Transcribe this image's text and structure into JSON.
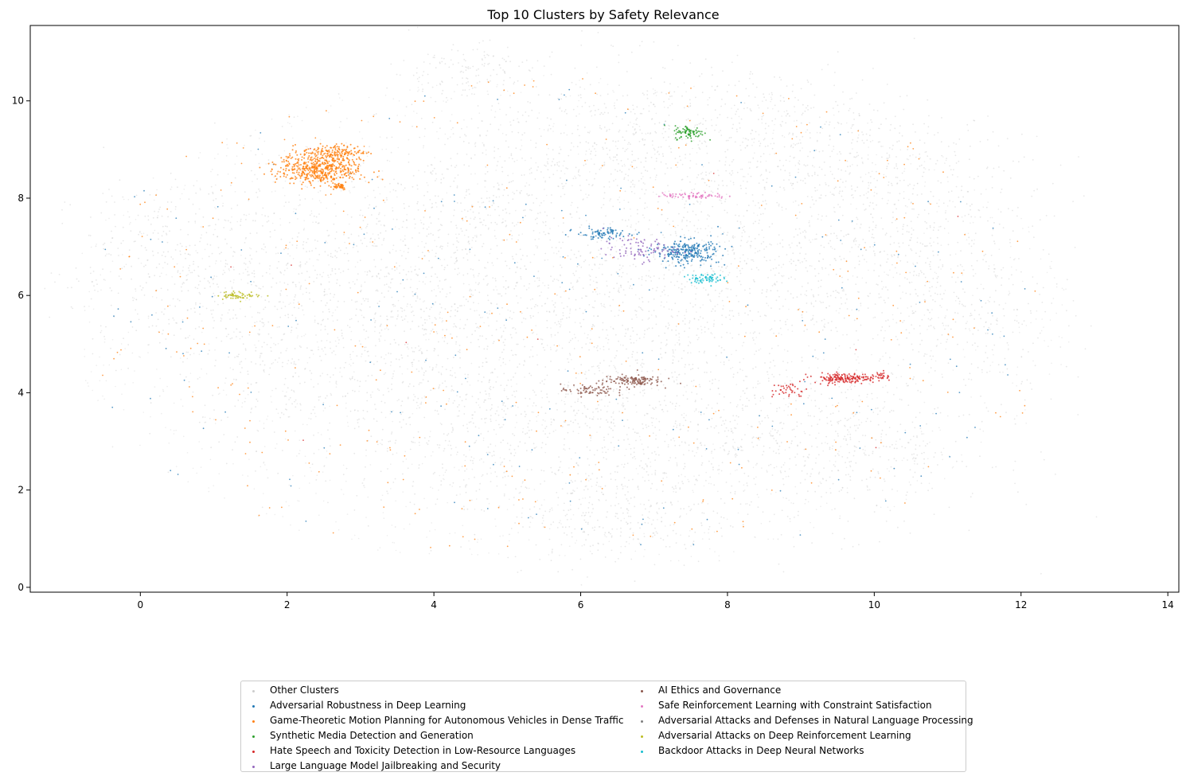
{
  "chart_data": {
    "type": "scatter",
    "title": "Top 10 Clusters by Safety Relevance",
    "xlabel": "",
    "ylabel": "",
    "xlim": [
      -1.5,
      14.15
    ],
    "ylim": [
      -0.1,
      11.55
    ],
    "xticks": [
      0,
      2,
      4,
      6,
      8,
      10,
      12,
      14
    ],
    "yticks": [
      0,
      2,
      4,
      6,
      8,
      10
    ],
    "grid": false,
    "legend_position": "bottom-center",
    "legend_columns": 2,
    "background_series": {
      "name": "Other Clusters",
      "color": "#cccccc",
      "description_regions": [
        {
          "x": 0.6,
          "y": 6.6,
          "sx": 0.9,
          "sy": 0.9,
          "n": 420
        },
        {
          "x": 2.5,
          "y": 6.4,
          "sx": 1.0,
          "sy": 1.1,
          "n": 380
        },
        {
          "x": 4.6,
          "y": 8.0,
          "sx": 0.9,
          "sy": 1.0,
          "n": 380
        },
        {
          "x": 4.2,
          "y": 5.6,
          "sx": 1.0,
          "sy": 0.9,
          "n": 420
        },
        {
          "x": 4.3,
          "y": 3.4,
          "sx": 1.0,
          "sy": 0.9,
          "n": 380
        },
        {
          "x": 6.6,
          "y": 9.1,
          "sx": 0.9,
          "sy": 0.9,
          "n": 420
        },
        {
          "x": 6.8,
          "y": 6.2,
          "sx": 1.0,
          "sy": 1.0,
          "n": 520
        },
        {
          "x": 6.6,
          "y": 3.3,
          "sx": 1.0,
          "sy": 1.0,
          "n": 480
        },
        {
          "x": 6.5,
          "y": 1.4,
          "sx": 0.8,
          "sy": 0.5,
          "n": 240
        },
        {
          "x": 8.8,
          "y": 9.1,
          "sx": 1.1,
          "sy": 0.8,
          "n": 460
        },
        {
          "x": 9.0,
          "y": 6.6,
          "sx": 1.1,
          "sy": 1.0,
          "n": 500
        },
        {
          "x": 9.2,
          "y": 3.0,
          "sx": 1.2,
          "sy": 0.9,
          "n": 620
        },
        {
          "x": 10.8,
          "y": 7.6,
          "sx": 0.8,
          "sy": 0.9,
          "n": 300
        },
        {
          "x": 11.3,
          "y": 5.6,
          "sx": 0.7,
          "sy": 0.8,
          "n": 200
        },
        {
          "x": 4.4,
          "y": 10.6,
          "sx": 0.5,
          "sy": 0.3,
          "n": 140
        },
        {
          "x": 2.0,
          "y": 4.3,
          "sx": 1.0,
          "sy": 0.8,
          "n": 220
        }
      ]
    },
    "series": [
      {
        "name": "Adversarial Robustness in Deep Learning",
        "color": "#1f77b4",
        "clusters": [
          {
            "x": 7.45,
            "y": 6.9,
            "sx": 0.22,
            "sy": 0.12,
            "n": 260
          },
          {
            "x": 6.3,
            "y": 7.27,
            "sx": 0.18,
            "sy": 0.06,
            "n": 80
          }
        ],
        "scatter_n": 260
      },
      {
        "name": "Game-Theoretic Motion Planning for Autonomous Vehicles in Dense Traffic",
        "color": "#ff7f0e",
        "clusters": [
          {
            "x": 2.45,
            "y": 8.6,
            "sx": 0.28,
            "sy": 0.16,
            "n": 520
          },
          {
            "x": 2.65,
            "y": 8.95,
            "sx": 0.22,
            "sy": 0.08,
            "n": 140
          },
          {
            "x": 2.7,
            "y": 8.25,
            "sx": 0.06,
            "sy": 0.04,
            "n": 40
          }
        ],
        "scatter_n": 420
      },
      {
        "name": "Synthetic Media Detection and Generation",
        "color": "#2ca02c",
        "clusters": [
          {
            "x": 7.48,
            "y": 9.35,
            "sx": 0.1,
            "sy": 0.07,
            "n": 80
          }
        ],
        "scatter_n": 0
      },
      {
        "name": "Hate Speech and Toxicity Detection in Low-Resource Languages",
        "color": "#d62728",
        "clusters": [
          {
            "x": 9.6,
            "y": 4.3,
            "sx": 0.22,
            "sy": 0.05,
            "n": 180
          },
          {
            "x": 8.85,
            "y": 4.05,
            "sx": 0.12,
            "sy": 0.08,
            "n": 40
          },
          {
            "x": 10.1,
            "y": 4.35,
            "sx": 0.05,
            "sy": 0.05,
            "n": 20
          }
        ],
        "scatter_n": 12
      },
      {
        "name": "Large Language Model Jailbreaking and Security",
        "color": "#9467bd",
        "clusters": [
          {
            "x": 6.8,
            "y": 6.95,
            "sx": 0.25,
            "sy": 0.12,
            "n": 90
          }
        ],
        "scatter_n": 0
      },
      {
        "name": "AI Ethics and Governance",
        "color": "#8c564b",
        "clusters": [
          {
            "x": 6.7,
            "y": 4.25,
            "sx": 0.2,
            "sy": 0.06,
            "n": 130
          },
          {
            "x": 6.1,
            "y": 4.05,
            "sx": 0.18,
            "sy": 0.06,
            "n": 70
          }
        ],
        "scatter_n": 0
      },
      {
        "name": "Safe Reinforcement Learning with Constraint Satisfaction",
        "color": "#e377c2",
        "clusters": [
          {
            "x": 7.55,
            "y": 8.05,
            "sx": 0.22,
            "sy": 0.03,
            "n": 70
          }
        ],
        "scatter_n": 0
      },
      {
        "name": "Adversarial Attacks and Defenses in Natural Language Processing",
        "color": "#7f7f7f",
        "clusters": [],
        "scatter_n": 0
      },
      {
        "name": "Adversarial Attacks on Deep Reinforcement Learning",
        "color": "#bcbd22",
        "clusters": [
          {
            "x": 1.35,
            "y": 6.0,
            "sx": 0.15,
            "sy": 0.04,
            "n": 60
          }
        ],
        "scatter_n": 0
      },
      {
        "name": "Backdoor Attacks in Deep Neural Networks",
        "color": "#17becf",
        "clusters": [
          {
            "x": 7.7,
            "y": 6.35,
            "sx": 0.12,
            "sy": 0.05,
            "n": 70
          }
        ],
        "scatter_n": 0
      }
    ]
  },
  "legend": {
    "col0": [
      "Other Clusters",
      "Adversarial Robustness in Deep Learning",
      "Game-Theoretic Motion Planning for Autonomous Vehicles in Dense Traffic",
      "Synthetic Media Detection and Generation",
      "Hate Speech and Toxicity Detection in Low-Resource Languages",
      "Large Language Model Jailbreaking and Security"
    ],
    "col1": [
      "AI Ethics and Governance",
      "Safe Reinforcement Learning with Constraint Satisfaction",
      "Adversarial Attacks and Defenses in Natural Language Processing",
      "Adversarial Attacks on Deep Reinforcement Learning",
      "Backdoor Attacks in Deep Neural Networks"
    ],
    "colors_col0": [
      "#cccccc",
      "#1f77b4",
      "#ff7f0e",
      "#2ca02c",
      "#d62728",
      "#9467bd"
    ],
    "colors_col1": [
      "#8c564b",
      "#e377c2",
      "#7f7f7f",
      "#bcbd22",
      "#17becf"
    ]
  }
}
